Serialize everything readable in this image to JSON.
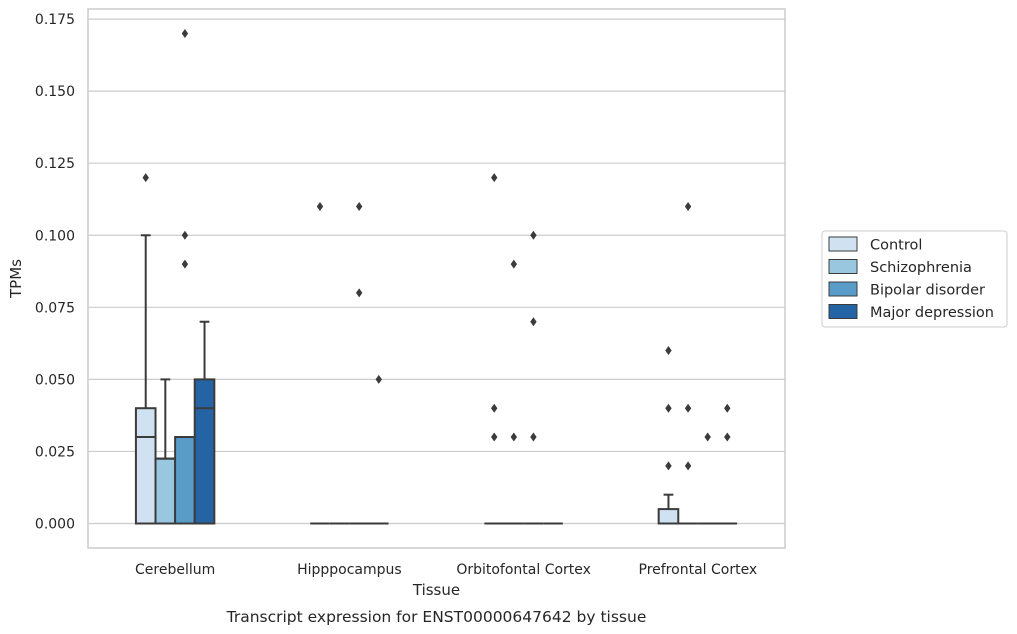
{
  "chart_data": {
    "type": "box",
    "title": "",
    "caption": "Transcript expression for ENST00000647642 by tissue",
    "xlabel": "Tissue",
    "ylabel": "TPMs",
    "ylim": [
      -0.0085,
      0.1785
    ],
    "yticks": [
      0.0,
      0.025,
      0.05,
      0.075,
      0.1,
      0.125,
      0.15,
      0.175
    ],
    "ytick_labels": [
      "0.000",
      "0.025",
      "0.050",
      "0.075",
      "0.100",
      "0.125",
      "0.150",
      "0.175"
    ],
    "grid": "y",
    "legend_position": "right",
    "categories": [
      "Cerebellum",
      "Hipppocampus",
      "Orbitofontal Cortex",
      "Prefrontal Cortex"
    ],
    "series": [
      {
        "name": "Control",
        "color": "#d0e2f2",
        "boxes": [
          {
            "min": 0.0,
            "q1": 0.0,
            "median": 0.03,
            "q3": 0.04,
            "max": 0.1,
            "outliers": [
              0.12
            ]
          },
          {
            "min": 0.0,
            "q1": 0.0,
            "median": 0.0,
            "q3": 0.0,
            "max": 0.0,
            "outliers": [
              0.11
            ]
          },
          {
            "min": 0.0,
            "q1": 0.0,
            "median": 0.0,
            "q3": 0.0,
            "max": 0.0,
            "outliers": [
              0.12,
              0.04,
              0.03
            ]
          },
          {
            "min": 0.0,
            "q1": 0.0,
            "median": 0.0,
            "q3": 0.005,
            "max": 0.01,
            "outliers": [
              0.06,
              0.04,
              0.02
            ]
          }
        ]
      },
      {
        "name": "Schizophrenia",
        "color": "#9ac7e0",
        "boxes": [
          {
            "min": 0.0,
            "q1": 0.0,
            "median": 0.0225,
            "q3": 0.0225,
            "max": 0.05,
            "outliers": []
          },
          {
            "min": 0.0,
            "q1": 0.0,
            "median": 0.0,
            "q3": 0.0,
            "max": 0.0,
            "outliers": []
          },
          {
            "min": 0.0,
            "q1": 0.0,
            "median": 0.0,
            "q3": 0.0,
            "max": 0.0,
            "outliers": [
              0.09,
              0.03
            ]
          },
          {
            "min": 0.0,
            "q1": 0.0,
            "median": 0.0,
            "q3": 0.0,
            "max": 0.0,
            "outliers": [
              0.11,
              0.04,
              0.02
            ]
          }
        ]
      },
      {
        "name": "Bipolar disorder",
        "color": "#5a9cc8",
        "boxes": [
          {
            "min": 0.0,
            "q1": 0.0,
            "median": 0.03,
            "q3": 0.03,
            "max": 0.03,
            "outliers": [
              0.17,
              0.1,
              0.09
            ]
          },
          {
            "min": 0.0,
            "q1": 0.0,
            "median": 0.0,
            "q3": 0.0,
            "max": 0.0,
            "outliers": [
              0.11,
              0.08
            ]
          },
          {
            "min": 0.0,
            "q1": 0.0,
            "median": 0.0,
            "q3": 0.0,
            "max": 0.0,
            "outliers": [
              0.1,
              0.07,
              0.03
            ]
          },
          {
            "min": 0.0,
            "q1": 0.0,
            "median": 0.0,
            "q3": 0.0,
            "max": 0.0,
            "outliers": [
              0.03
            ]
          }
        ]
      },
      {
        "name": "Major depression",
        "color": "#2464a5",
        "boxes": [
          {
            "min": 0.0,
            "q1": 0.0,
            "median": 0.04,
            "q3": 0.05,
            "max": 0.07,
            "outliers": []
          },
          {
            "min": 0.0,
            "q1": 0.0,
            "median": 0.0,
            "q3": 0.0,
            "max": 0.0,
            "outliers": [
              0.05
            ]
          },
          {
            "min": 0.0,
            "q1": 0.0,
            "median": 0.0,
            "q3": 0.0,
            "max": 0.0,
            "outliers": []
          },
          {
            "min": 0.0,
            "q1": 0.0,
            "median": 0.0,
            "q3": 0.0,
            "max": 0.0,
            "outliers": [
              0.04,
              0.03
            ]
          }
        ]
      }
    ]
  }
}
